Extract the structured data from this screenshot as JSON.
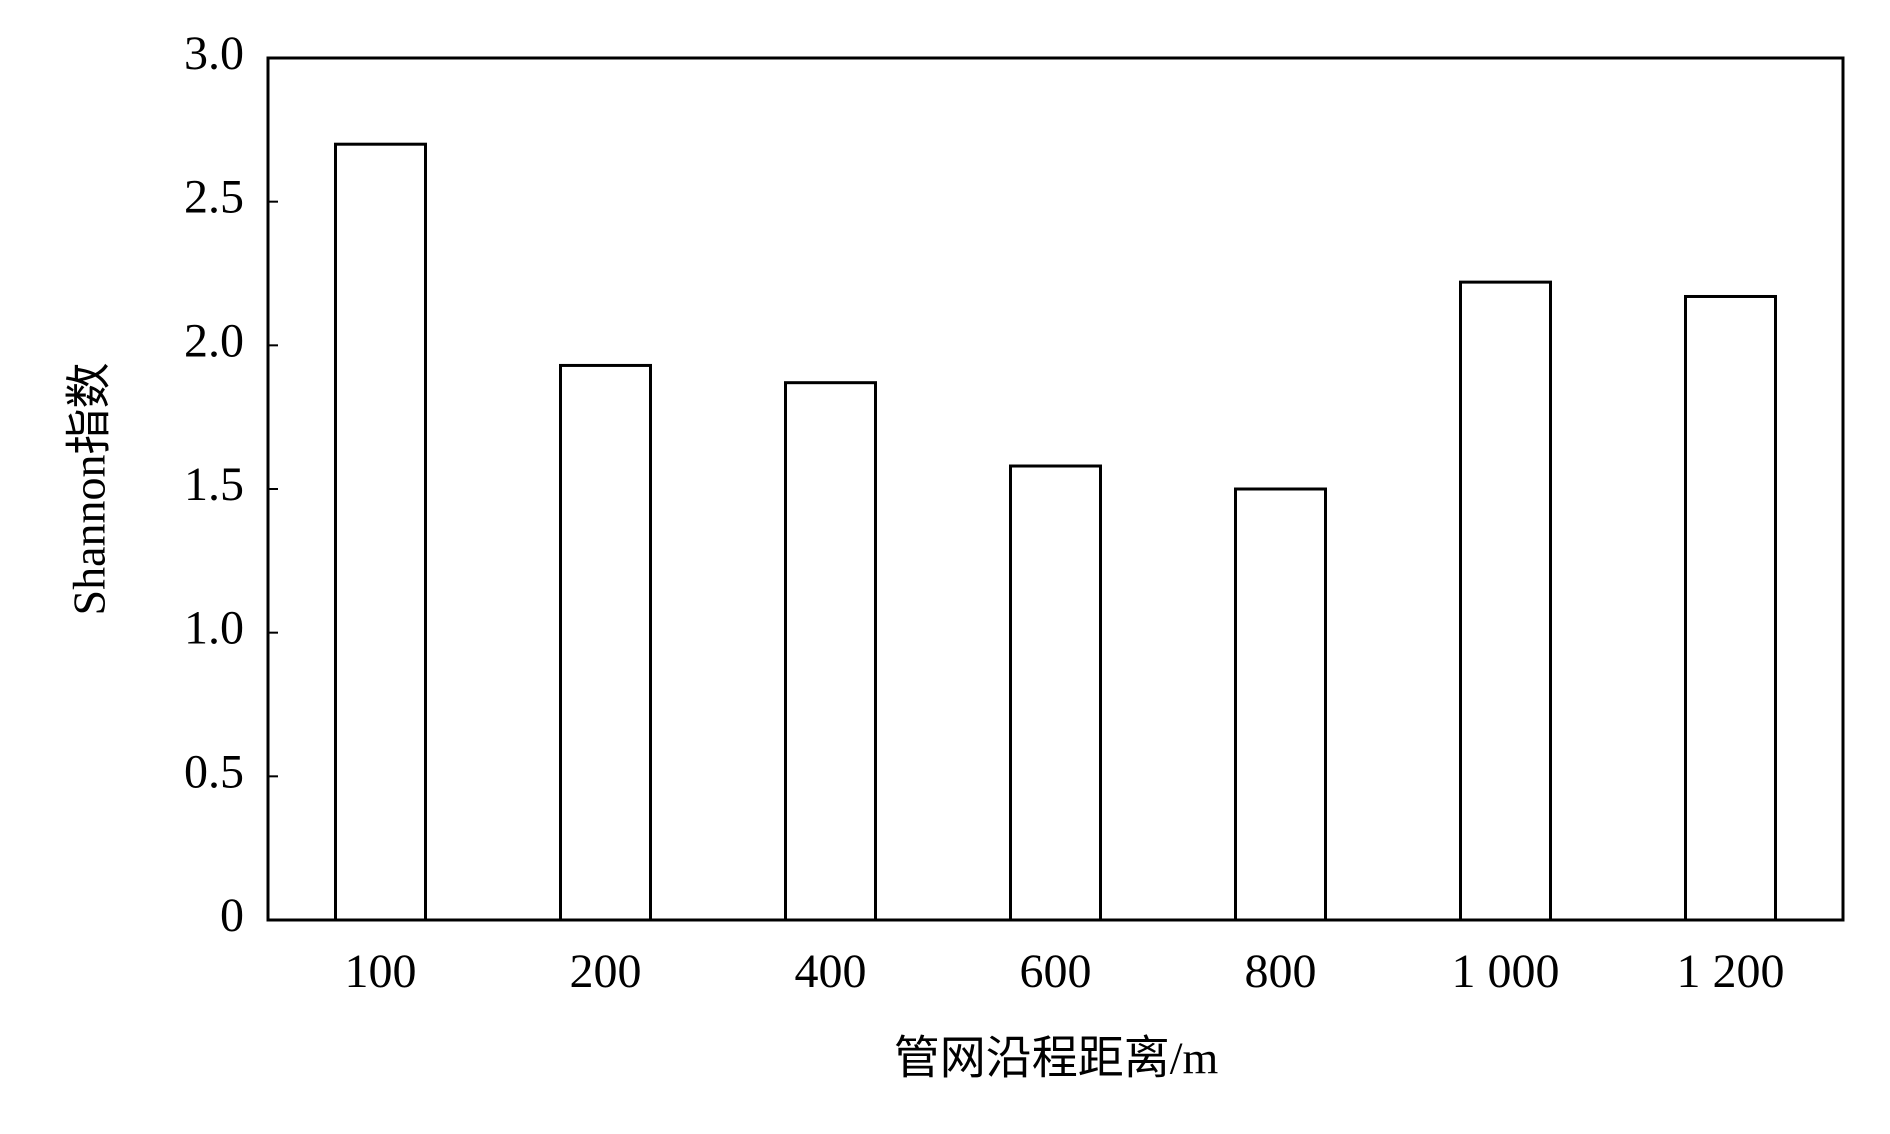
{
  "chart_data": {
    "type": "bar",
    "x_label": "管网沿程距离/m",
    "y_label": "Shannon指数",
    "categories": [
      "100",
      "200",
      "400",
      "600",
      "800",
      "1 000",
      "1 200"
    ],
    "values": [
      2.7,
      1.93,
      1.87,
      1.58,
      1.5,
      2.22,
      2.17
    ],
    "color": "#ffffff",
    "ylim": [
      0,
      3
    ],
    "yticks": [
      0,
      0.5,
      {
        "value": 1,
        "label": "1.0"
      },
      1.5,
      {
        "value": 2,
        "label": "2.0"
      },
      2.5,
      {
        "value": 3,
        "label": "3.0"
      }
    ],
    "grid": false
  }
}
